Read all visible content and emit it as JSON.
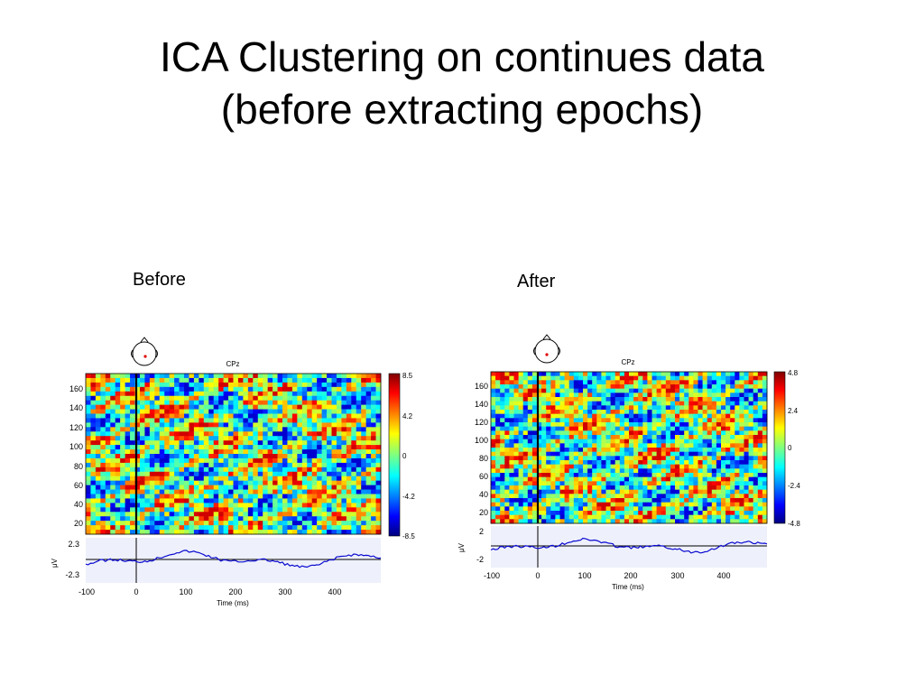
{
  "slide": {
    "title_line1": "ICA Clustering on continues data",
    "title_line2": "(before extracting epochs)"
  },
  "panels": {
    "before": {
      "label": "Before",
      "channel": "CPz",
      "y_ticks": [
        "160",
        "140",
        "120",
        "100",
        "80",
        "60",
        "40",
        "20"
      ],
      "x_ticks": [
        "-100",
        "0",
        "100",
        "200",
        "300",
        "400"
      ],
      "xlabel": "Time (ms)",
      "erp_ylabel": "μV",
      "erp_ticks": [
        "2.3",
        "-2.3"
      ],
      "colorbar_ticks": [
        "8.5",
        "4.2",
        "0",
        "-4.2",
        "-8.5"
      ]
    },
    "after": {
      "label": "After",
      "channel": "CPz",
      "y_ticks": [
        "160",
        "140",
        "120",
        "100",
        "80",
        "60",
        "40",
        "20"
      ],
      "x_ticks": [
        "-100",
        "0",
        "100",
        "200",
        "300",
        "400"
      ],
      "xlabel": "Time (ms)",
      "erp_ylabel": "μV",
      "erp_ticks": [
        "2",
        "-2"
      ],
      "colorbar_ticks": [
        "4.8",
        "2.4",
        "0",
        "-2.4",
        "-4.8"
      ]
    }
  },
  "colors": {
    "erp_line": "#0a0ad0",
    "erp_background": "#eef0fb",
    "head_dot": "#e00000"
  }
}
